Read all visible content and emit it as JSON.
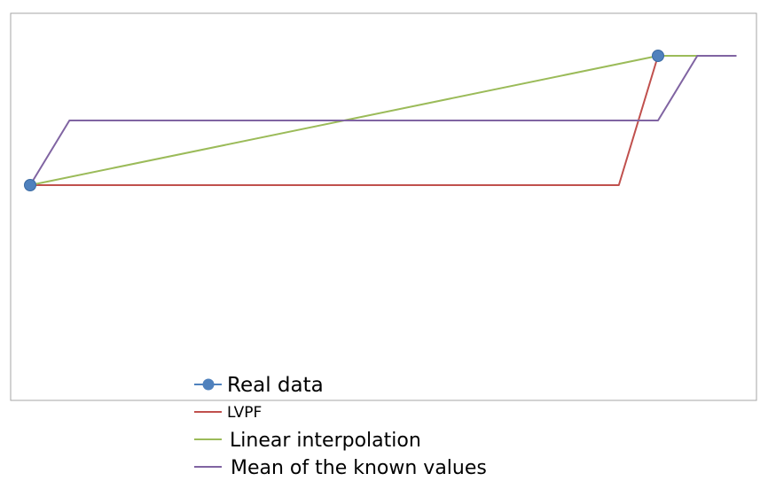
{
  "chart_data": {
    "type": "line",
    "title": "",
    "xlabel": "",
    "ylabel": "",
    "axes_visible": false,
    "grid": false,
    "legend_placement": "bottom",
    "x": [
      0,
      1,
      2,
      3,
      4,
      5,
      6,
      7,
      8,
      9,
      10,
      11,
      12,
      13,
      14,
      15,
      16,
      17,
      18,
      19
    ],
    "xlim": [
      0,
      19
    ],
    "ylim": [
      -5,
      10
    ],
    "series": [
      {
        "name": "Real data",
        "color": "#4F81BD",
        "marker": "circle",
        "points": [
          {
            "x": 0,
            "y": 5
          },
          {
            "x": 16,
            "y": 10
          }
        ]
      },
      {
        "name": "LVPF",
        "color": "#C0504D",
        "marker": "none",
        "points": [
          {
            "x": 0,
            "y": 5
          },
          {
            "x": 15,
            "y": 5
          },
          {
            "x": 16,
            "y": 10
          },
          {
            "x": 18,
            "y": 10
          }
        ]
      },
      {
        "name": "Linear interpolation",
        "color": "#9BBB59",
        "marker": "none",
        "points": [
          {
            "x": 0,
            "y": 5
          },
          {
            "x": 16,
            "y": 10
          },
          {
            "x": 18,
            "y": 10
          }
        ]
      },
      {
        "name": "Mean of the known values",
        "color": "#8064A2",
        "marker": "none",
        "points": [
          {
            "x": 0,
            "y": 5
          },
          {
            "x": 1,
            "y": 7.5
          },
          {
            "x": 16,
            "y": 7.5
          },
          {
            "x": 17,
            "y": 10
          },
          {
            "x": 18,
            "y": 10
          }
        ]
      }
    ]
  }
}
